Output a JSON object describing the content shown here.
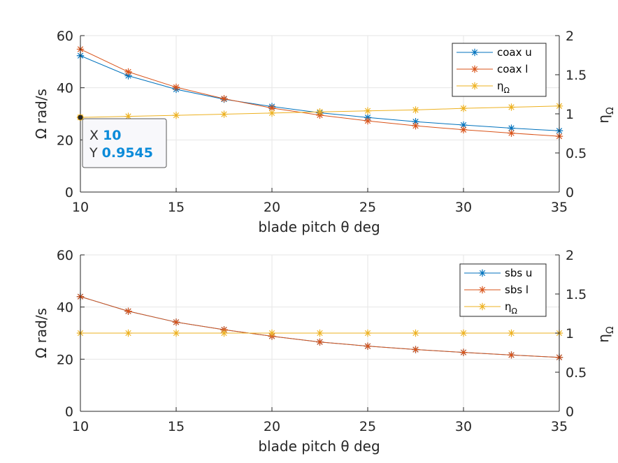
{
  "colors": {
    "blue": "#0072BD",
    "orange": "#D95319",
    "yellow": "#EDB120",
    "tip_value": "#0B8BD9"
  },
  "chart_data": [
    {
      "type": "line",
      "x": [
        10,
        12.5,
        15,
        17.5,
        20,
        22.5,
        25,
        27.5,
        30,
        32.5,
        35
      ],
      "xlabel": "blade pitch θ deg",
      "ylabel": "Ω rad/s",
      "ylabel_right": "ηΩ",
      "xlim": [
        10,
        35
      ],
      "ylim": [
        0,
        60
      ],
      "ylim_right": [
        0,
        2
      ],
      "xticks": [
        "10",
        "15",
        "20",
        "25",
        "30",
        "35"
      ],
      "yticks": [
        "0",
        "20",
        "40",
        "60"
      ],
      "yticks_right": [
        "0",
        "0.5",
        "1",
        "1.5",
        "2"
      ],
      "grid": true,
      "legend_position": "top-right",
      "series": [
        {
          "name": "coax u",
          "axis": "left",
          "color": "#0072BD",
          "marker": "asterisk",
          "values": [
            52.3,
            44.6,
            39.4,
            35.6,
            32.8,
            30.4,
            28.6,
            27.0,
            25.7,
            24.5,
            23.5
          ]
        },
        {
          "name": "coax l",
          "axis": "left",
          "color": "#D95319",
          "marker": "asterisk",
          "values": [
            54.8,
            46.1,
            40.2,
            35.8,
            32.2,
            29.5,
            27.3,
            25.4,
            23.9,
            22.6,
            21.4
          ]
        },
        {
          "name": "ηΩ",
          "axis": "right",
          "color": "#EDB120",
          "marker": "asterisk",
          "values": [
            0.9545,
            0.968,
            0.981,
            0.995,
            1.01,
            1.025,
            1.038,
            1.05,
            1.07,
            1.085,
            1.1
          ]
        }
      ],
      "datatip": {
        "x_label": "X",
        "x_value": "10",
        "y_label": "Y",
        "y_value": "0.9545",
        "series": "ηΩ",
        "point": [
          10,
          0.9545
        ]
      }
    },
    {
      "type": "line",
      "x": [
        10,
        12.5,
        15,
        17.5,
        20,
        22.5,
        25,
        27.5,
        30,
        32.5,
        35
      ],
      "xlabel": "blade pitch θ deg",
      "ylabel": "Ω rad/s",
      "ylabel_right": "ηΩ",
      "xlim": [
        10,
        35
      ],
      "ylim": [
        0,
        60
      ],
      "ylim_right": [
        0,
        2
      ],
      "xticks": [
        "10",
        "15",
        "20",
        "25",
        "30",
        "35"
      ],
      "yticks": [
        "0",
        "20",
        "40",
        "60"
      ],
      "yticks_right": [
        "0",
        "0.5",
        "1",
        "1.5",
        "2"
      ],
      "grid": true,
      "legend_position": "top-right",
      "series": [
        {
          "name": "sbs u",
          "axis": "left",
          "color": "#0072BD",
          "marker": "asterisk",
          "values": [
            44.0,
            38.4,
            34.2,
            31.3,
            28.8,
            26.6,
            25.0,
            23.7,
            22.6,
            21.6,
            20.7
          ]
        },
        {
          "name": "sbs l",
          "axis": "left",
          "color": "#D95319",
          "marker": "asterisk",
          "values": [
            44.0,
            38.4,
            34.2,
            31.3,
            28.8,
            26.6,
            25.0,
            23.7,
            22.6,
            21.6,
            20.7
          ]
        },
        {
          "name": "ηΩ",
          "axis": "right",
          "color": "#EDB120",
          "marker": "asterisk",
          "values": [
            1,
            1,
            1,
            1,
            1,
            1,
            1,
            1,
            1,
            1,
            1
          ]
        }
      ]
    }
  ]
}
